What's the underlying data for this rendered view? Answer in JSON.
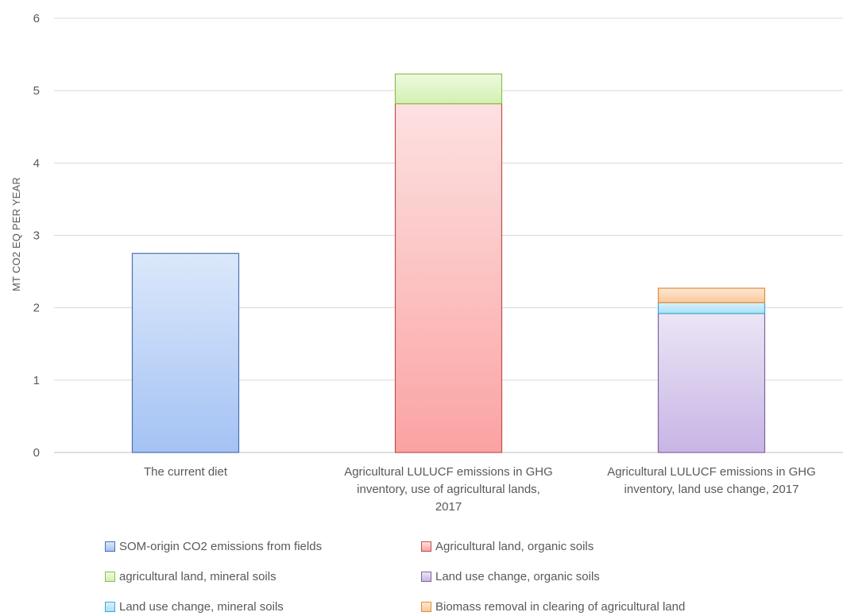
{
  "chart_data": {
    "type": "bar",
    "stacked": true,
    "ylabel": "MT CO2 EQ PER YEAR",
    "ylim": [
      0,
      6
    ],
    "yticks": [
      0,
      1,
      2,
      3,
      4,
      5,
      6
    ],
    "grid": true,
    "legend_position": "bottom",
    "categories": [
      [
        "The current diet"
      ],
      [
        "Agricultural LULUCF emissions in GHG",
        "inventory, use of agricultural lands,",
        "2017"
      ],
      [
        "Agricultural LULUCF emissions in GHG",
        "inventory, land use change, 2017"
      ]
    ],
    "series": [
      {
        "name": "SOM-origin CO2 emissions from fields",
        "values": [
          2.75,
          0,
          0
        ],
        "color_top": "#dbe8fb",
        "color_bottom": "#a4c2f4",
        "border": "#4a72b0"
      },
      {
        "name": "Agricultural land, organic soils",
        "values": [
          0,
          4.82,
          0
        ],
        "color_top": "#fde1e1",
        "color_bottom": "#fba3a3",
        "border": "#c0504d"
      },
      {
        "name": "agricultural land, mineral soils",
        "values": [
          0,
          0.41,
          0
        ],
        "color_top": "#eef9df",
        "color_bottom": "#d3f0b3",
        "border": "#8cc04a"
      },
      {
        "name": "Land use change, organic soils",
        "values": [
          0,
          0,
          1.92
        ],
        "color_top": "#ebe5f5",
        "color_bottom": "#c8b5e5",
        "border": "#8064a2"
      },
      {
        "name": "Land use change, mineral soils",
        "values": [
          0,
          0,
          0.15
        ],
        "color_top": "#d8f1fb",
        "color_bottom": "#a9e1f6",
        "border": "#3aaad8"
      },
      {
        "name": "Biomass removal in clearing of agricultural land",
        "values": [
          0,
          0,
          0.2
        ],
        "color_top": "#fde7d4",
        "color_bottom": "#f9c99b",
        "border": "#e58c3a"
      }
    ]
  }
}
